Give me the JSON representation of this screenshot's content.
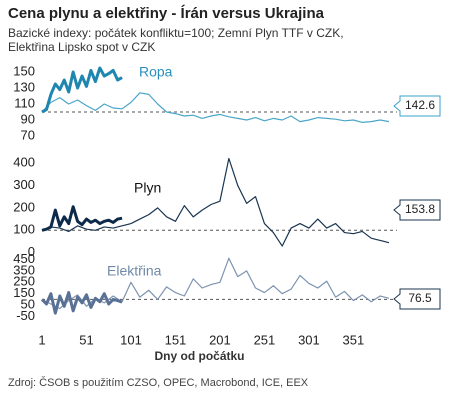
{
  "title": "Cena plynu a elektřiny - Írán versus Ukrajina",
  "subtitle": "Bazické indexy: počátek konfliktu=100; Zemní Plyn TTF v CZK, Elektřina Lipsko spot v CZK",
  "source": "Zdroj: ČSOB s použitím CZSO, OPEC, Macrobond, ICE, EEX",
  "chart_data": [
    {
      "type": "line",
      "label": "Ropa",
      "label_color": "#2a8fbd",
      "xlim": [
        1,
        400
      ],
      "ylim": [
        60,
        160
      ],
      "yticks": [
        150,
        130,
        110,
        90,
        70
      ],
      "reference": 100,
      "end_label": 142.6,
      "end_label_color": "#3aa0c8",
      "series": [
        {
          "color": "#4aa6c8",
          "width": 1.2,
          "x": [
            1,
            11,
            21,
            31,
            41,
            51,
            61,
            71,
            81,
            91,
            101,
            111,
            121,
            131,
            141,
            151,
            161,
            171,
            181,
            191,
            201,
            211,
            221,
            231,
            241,
            251,
            261,
            271,
            281,
            291,
            301,
            311,
            321,
            331,
            341,
            351,
            361,
            371,
            381,
            391
          ],
          "values": [
            100,
            112,
            118,
            110,
            115,
            108,
            102,
            110,
            105,
            104,
            112,
            124,
            122,
            110,
            100,
            98,
            95,
            96,
            92,
            95,
            97,
            94,
            92,
            90,
            93,
            89,
            92,
            90,
            95,
            88,
            90,
            93,
            92,
            91,
            89,
            90,
            87,
            88,
            90,
            88
          ]
        },
        {
          "color": "#1f86b0",
          "width": 3,
          "x": [
            1,
            6,
            11,
            16,
            21,
            26,
            31,
            36,
            41,
            46,
            51,
            56,
            61,
            66,
            71,
            76,
            81,
            86,
            91
          ],
          "values": [
            100,
            103,
            122,
            135,
            128,
            140,
            125,
            150,
            130,
            145,
            132,
            152,
            138,
            155,
            145,
            148,
            152,
            140,
            143
          ]
        }
      ]
    },
    {
      "type": "line",
      "label": "Plyn",
      "label_color": "#111111",
      "xlim": [
        1,
        400
      ],
      "ylim": [
        -10,
        440
      ],
      "yticks": [
        400,
        300,
        200,
        100,
        0
      ],
      "reference": 100,
      "end_label": 153.8,
      "end_label_color": "#1a3550",
      "series": [
        {
          "color": "#1a3550",
          "width": 1.2,
          "x": [
            1,
            11,
            21,
            31,
            41,
            51,
            61,
            71,
            81,
            91,
            101,
            111,
            121,
            131,
            141,
            151,
            161,
            171,
            181,
            191,
            201,
            211,
            221,
            231,
            241,
            251,
            261,
            271,
            281,
            291,
            301,
            311,
            321,
            331,
            341,
            351,
            361,
            371,
            381,
            391
          ],
          "values": [
            100,
            115,
            110,
            95,
            120,
            105,
            100,
            115,
            110,
            120,
            130,
            150,
            170,
            200,
            160,
            140,
            210,
            160,
            190,
            215,
            230,
            420,
            300,
            220,
            250,
            130,
            90,
            30,
            110,
            130,
            110,
            150,
            110,
            130,
            90,
            85,
            95,
            65,
            55,
            45
          ]
        },
        {
          "color": "#0d2a4a",
          "width": 3,
          "x": [
            1,
            6,
            11,
            16,
            21,
            26,
            31,
            36,
            41,
            46,
            51,
            56,
            61,
            66,
            71,
            76,
            81,
            86,
            91
          ],
          "values": [
            100,
            105,
            115,
            190,
            120,
            160,
            130,
            205,
            140,
            125,
            150,
            135,
            145,
            130,
            140,
            145,
            135,
            150,
            154
          ]
        }
      ]
    },
    {
      "type": "line",
      "label": "Elektřina",
      "label_color": "#6f89a8",
      "xlim": [
        1,
        400
      ],
      "ylim": [
        -80,
        480
      ],
      "yticks": [
        450,
        350,
        250,
        150,
        50,
        -50
      ],
      "reference": 100,
      "end_label": 76.5,
      "end_label_color": "#1a3550",
      "x_label": "Dny od počátku",
      "xticks": [
        1,
        51,
        101,
        151,
        201,
        251,
        301,
        351
      ],
      "series": [
        {
          "color": "#7d93b0",
          "width": 1.2,
          "x": [
            1,
            11,
            21,
            31,
            41,
            51,
            61,
            71,
            81,
            91,
            101,
            111,
            121,
            131,
            141,
            151,
            161,
            171,
            181,
            191,
            201,
            211,
            221,
            231,
            241,
            251,
            261,
            271,
            281,
            291,
            301,
            311,
            321,
            331,
            341,
            351,
            361,
            371,
            381,
            391
          ],
          "values": [
            100,
            60,
            20,
            90,
            140,
            40,
            110,
            70,
            130,
            80,
            250,
            120,
            180,
            100,
            210,
            160,
            130,
            280,
            200,
            230,
            250,
            460,
            300,
            350,
            200,
            160,
            220,
            150,
            190,
            310,
            240,
            200,
            260,
            120,
            170,
            90,
            140,
            80,
            130,
            110
          ]
        },
        {
          "color": "#5a7196",
          "width": 3,
          "x": [
            1,
            6,
            11,
            16,
            21,
            26,
            31,
            36,
            41,
            46,
            51,
            56,
            61,
            66,
            71,
            76,
            81,
            86,
            91
          ],
          "values": [
            100,
            60,
            150,
            -20,
            130,
            40,
            160,
            0,
            120,
            70,
            140,
            30,
            110,
            80,
            150,
            60,
            100,
            90,
            77
          ]
        }
      ]
    }
  ]
}
